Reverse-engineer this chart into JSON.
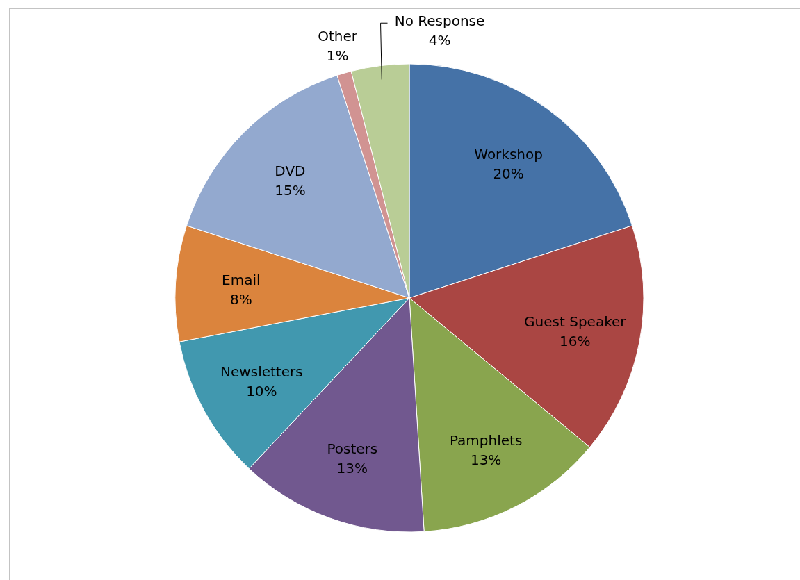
{
  "chart_data": {
    "type": "pie",
    "categories": [
      "Workshop",
      "Guest Speaker",
      "Pamphlets",
      "Posters",
      "Newsletters",
      "Email",
      "DVD",
      "Other",
      "No Response"
    ],
    "values": [
      20,
      16,
      13,
      13,
      10,
      8,
      15,
      1,
      4
    ],
    "value_labels": [
      "20%",
      "16%",
      "13%",
      "13%",
      "10%",
      "8%",
      "15%",
      "1%",
      "4%"
    ],
    "colors": [
      "#4572a7",
      "#aa4643",
      "#89a54e",
      "#71588f",
      "#4198af",
      "#db843d",
      "#93a9cf",
      "#d19392",
      "#b9cd96"
    ]
  }
}
